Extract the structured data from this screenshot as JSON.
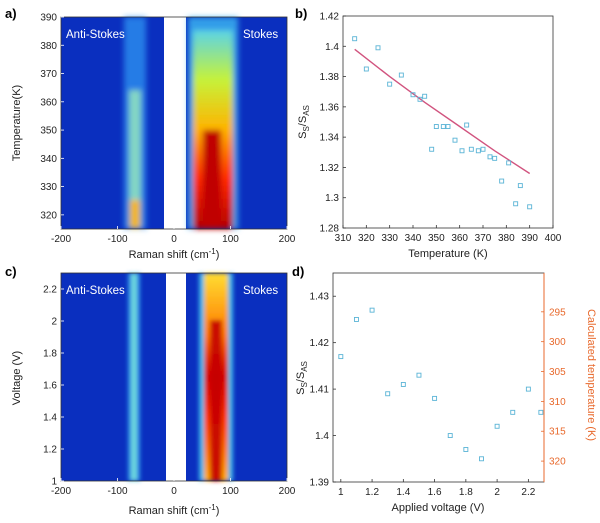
{
  "panels": [
    {
      "label": "a)"
    },
    {
      "label": "b)"
    },
    {
      "label": "c)"
    },
    {
      "label": "d)"
    }
  ],
  "chart_data": [
    {
      "panel": "a)",
      "type": "heatmap",
      "xlabel": "Raman shift (cm",
      "xlabel_sup": "-1",
      "xlabel_close": ")",
      "ylabel": "Temperature(K)",
      "xlim": [
        -200,
        200
      ],
      "ylim": [
        315,
        390
      ],
      "xticks": [
        "-200",
        "-100",
        "0",
        "100",
        "200"
      ],
      "yticks": [
        "320",
        "330",
        "340",
        "350",
        "360",
        "370",
        "380",
        "390"
      ],
      "annotations": [
        "Anti-Stokes",
        "Stokes"
      ],
      "colormap": "jet",
      "colors": {
        "background": "#0a2fbf",
        "gap": "#ffffff"
      }
    },
    {
      "panel": "b)",
      "type": "scatter",
      "xlabel": "Temperature (K)",
      "ylabel_main": "S",
      "ylabel_sub1": "S",
      "ylabel_mid": "/S",
      "ylabel_sub2": "AS",
      "xlim": [
        310,
        400
      ],
      "ylim": [
        1.28,
        1.42
      ],
      "xticks": [
        "310",
        "320",
        "330",
        "340",
        "350",
        "360",
        "370",
        "380",
        "390",
        "400"
      ],
      "yticks": [
        "1.28",
        "1.3",
        "1.32",
        "1.34",
        "1.36",
        "1.38",
        "1.4",
        "1.42"
      ],
      "series": [
        {
          "kind": "points",
          "color": "#5ab4d6",
          "x": [
            315,
            320,
            325,
            330,
            335,
            340,
            343,
            345,
            348,
            350,
            353,
            355,
            358,
            361,
            363,
            365,
            368,
            370,
            373,
            375,
            378,
            381,
            384,
            386,
            390
          ],
          "y": [
            1.405,
            1.385,
            1.399,
            1.375,
            1.381,
            1.368,
            1.365,
            1.367,
            1.332,
            1.347,
            1.347,
            1.347,
            1.338,
            1.331,
            1.348,
            1.332,
            1.331,
            1.332,
            1.327,
            1.326,
            1.311,
            1.323,
            1.296,
            1.308,
            1.294
          ]
        },
        {
          "kind": "fit",
          "color": "#d1547f",
          "x": [
            315,
            330,
            345,
            360,
            375,
            390
          ],
          "y": [
            1.398,
            1.38,
            1.363,
            1.347,
            1.331,
            1.316
          ]
        }
      ]
    },
    {
      "panel": "c)",
      "type": "heatmap",
      "xlabel": "Raman shift (cm",
      "xlabel_sup": "-1",
      "xlabel_close": ")",
      "ylabel": "Voltage (V)",
      "xlim": [
        -200,
        200
      ],
      "ylim": [
        1,
        2.3
      ],
      "xticks": [
        "-200",
        "-100",
        "0",
        "100",
        "200"
      ],
      "yticks": [
        "1",
        "1.2",
        "1.4",
        "1.6",
        "1.8",
        "2",
        "2.2"
      ],
      "annotations": [
        "Anti-Stokes",
        "Stokes"
      ],
      "colormap": "jet",
      "colors": {
        "background": "#0a2fbf",
        "gap": "#ffffff"
      }
    },
    {
      "panel": "d)",
      "type": "scatter",
      "xlabel": "Applied voltage (V)",
      "ylabel_main": "S",
      "ylabel_sub1": "S",
      "ylabel_mid": "/S",
      "ylabel_sub2": "AS",
      "ylabel_right": "Calculated temperature (K)",
      "xlim": [
        0.95,
        2.3
      ],
      "ylim": [
        1.39,
        1.435
      ],
      "y2lim": [
        323.5,
        288.5
      ],
      "xticks": [
        "1",
        "1.2",
        "1.4",
        "1.6",
        "1.8",
        "2",
        "2.2"
      ],
      "yticks": [
        "1.39",
        "1.4",
        "1.41",
        "1.42",
        "1.43"
      ],
      "y2ticks": [
        "295",
        "300",
        "305",
        "310",
        "315",
        "320"
      ],
      "series": [
        {
          "kind": "points",
          "color": "#5ab4d6",
          "x": [
            1.0,
            1.1,
            1.2,
            1.3,
            1.4,
            1.5,
            1.6,
            1.7,
            1.8,
            1.9,
            2.0,
            2.1,
            2.2,
            2.28
          ],
          "y": [
            1.417,
            1.425,
            1.427,
            1.409,
            1.411,
            1.413,
            1.408,
            1.4,
            1.397,
            1.395,
            1.402,
            1.405,
            1.41,
            1.405
          ]
        }
      ]
    }
  ]
}
